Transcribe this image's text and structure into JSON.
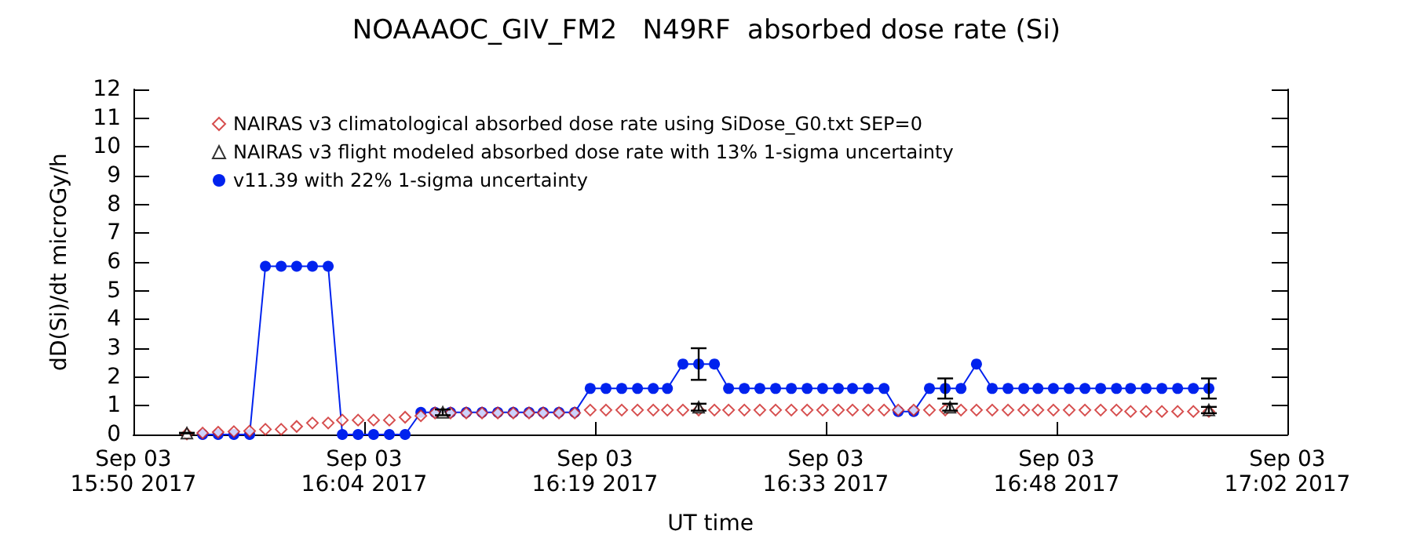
{
  "chart_data": {
    "type": "scatter",
    "title": "NOAAAOC_GIV_FM2   N49RF  absorbed dose rate (Si)",
    "xlabel": "UT time",
    "ylabel": "dD(Si)/dt microGy/h",
    "xlim": [
      "2017-09-03T15:50:00",
      "2017-09-03T17:02:00"
    ],
    "xticks": [
      {
        "value": "2017-09-03T15:50:00",
        "label": "Sep 03\n15:50 2017"
      },
      {
        "value": "2017-09-03T16:04:24",
        "label": "Sep 03\n16:04 2017"
      },
      {
        "value": "2017-09-03T16:18:48",
        "label": "Sep 03\n16:19 2017"
      },
      {
        "value": "2017-09-03T16:33:12",
        "label": "Sep 03\n16:33 2017"
      },
      {
        "value": "2017-09-03T16:47:36",
        "label": "Sep 03\n16:48 2017"
      },
      {
        "value": "2017-09-03T17:02:00",
        "label": "Sep 03\n17:02 2017"
      }
    ],
    "ylim": [
      0,
      12
    ],
    "yticks": [
      0,
      1,
      2,
      3,
      4,
      5,
      6,
      7,
      8,
      9,
      10,
      11,
      12
    ],
    "grid": false,
    "legend": "top left",
    "series": [
      {
        "name": "NAIRAS v3 climatological absorbed dose rate using SiDose_G0.txt SEP=0",
        "marker": "diamond",
        "color": "#cc2222",
        "x": [
          "2017-09-03T15:53:20",
          "2017-09-03T15:54:19",
          "2017-09-03T15:55:17",
          "2017-09-03T15:56:16",
          "2017-09-03T15:57:15",
          "2017-09-03T15:58:14",
          "2017-09-03T15:59:13",
          "2017-09-03T16:00:11",
          "2017-09-03T16:01:10",
          "2017-09-03T16:02:09",
          "2017-09-03T16:03:02",
          "2017-09-03T16:04:01",
          "2017-09-03T16:04:59",
          "2017-09-03T16:05:58",
          "2017-09-03T16:06:57",
          "2017-09-03T16:07:56",
          "2017-09-03T16:08:49",
          "2017-09-03T16:09:47",
          "2017-09-03T16:10:46",
          "2017-09-03T16:11:45",
          "2017-09-03T16:12:44",
          "2017-09-03T16:13:42",
          "2017-09-03T16:14:41",
          "2017-09-03T16:15:34",
          "2017-09-03T16:16:33",
          "2017-09-03T16:17:32",
          "2017-09-03T16:18:30",
          "2017-09-03T16:19:29",
          "2017-09-03T16:20:28",
          "2017-09-03T16:21:27",
          "2017-09-03T16:22:26",
          "2017-09-03T16:23:19",
          "2017-09-03T16:24:17",
          "2017-09-03T16:25:16",
          "2017-09-03T16:26:15",
          "2017-09-03T16:27:08",
          "2017-09-03T16:28:07",
          "2017-09-03T16:29:05",
          "2017-09-03T16:30:04",
          "2017-09-03T16:31:03",
          "2017-09-03T16:32:02",
          "2017-09-03T16:33:00",
          "2017-09-03T16:33:59",
          "2017-09-03T16:34:52",
          "2017-09-03T16:35:51",
          "2017-09-03T16:36:50",
          "2017-09-03T16:37:43",
          "2017-09-03T16:38:41",
          "2017-09-03T16:39:40",
          "2017-09-03T16:40:39",
          "2017-09-03T16:41:38",
          "2017-09-03T16:42:36",
          "2017-09-03T16:43:35",
          "2017-09-03T16:44:34",
          "2017-09-03T16:45:33",
          "2017-09-03T16:46:26",
          "2017-09-03T16:47:24",
          "2017-09-03T16:48:23",
          "2017-09-03T16:49:22",
          "2017-09-03T16:50:21",
          "2017-09-03T16:51:20",
          "2017-09-03T16:52:13",
          "2017-09-03T16:53:11",
          "2017-09-03T16:54:10",
          "2017-09-03T16:55:09",
          "2017-09-03T16:56:08",
          "2017-09-03T16:57:06"
        ],
        "values": [
          0.02,
          0.05,
          0.08,
          0.1,
          0.12,
          0.18,
          0.18,
          0.28,
          0.4,
          0.4,
          0.5,
          0.5,
          0.5,
          0.5,
          0.6,
          0.65,
          0.75,
          0.75,
          0.75,
          0.75,
          0.75,
          0.75,
          0.75,
          0.75,
          0.75,
          0.75,
          0.85,
          0.85,
          0.85,
          0.85,
          0.85,
          0.85,
          0.85,
          0.85,
          0.85,
          0.85,
          0.85,
          0.85,
          0.85,
          0.85,
          0.85,
          0.85,
          0.85,
          0.85,
          0.85,
          0.85,
          0.85,
          0.85,
          0.85,
          0.85,
          0.85,
          0.85,
          0.85,
          0.85,
          0.85,
          0.85,
          0.85,
          0.85,
          0.85,
          0.85,
          0.85,
          0.8,
          0.8,
          0.8,
          0.8,
          0.8,
          0.8
        ]
      },
      {
        "name": "NAIRAS v3 flight modeled absorbed dose rate with 13% 1-sigma uncertainty",
        "marker": "triangle",
        "color": "#000000",
        "x": [
          "2017-09-03T15:53:20",
          "2017-09-03T16:09:18",
          "2017-09-03T16:25:16",
          "2017-09-03T16:40:57",
          "2017-09-03T16:57:06"
        ],
        "values": [
          0.05,
          0.77,
          0.95,
          0.95,
          0.85
        ],
        "errors": [
          0.01,
          0.1,
          0.12,
          0.12,
          0.11
        ]
      },
      {
        "name": "v11.39 with 22% 1-sigma uncertainty",
        "type": "line",
        "marker": "circle",
        "color": "#0022ee",
        "x": [
          "2017-09-03T15:54:19",
          "2017-09-03T15:55:17",
          "2017-09-03T15:56:16",
          "2017-09-03T15:57:15",
          "2017-09-03T15:58:14",
          "2017-09-03T15:59:13",
          "2017-09-03T16:00:11",
          "2017-09-03T16:01:10",
          "2017-09-03T16:02:09",
          "2017-09-03T16:03:02",
          "2017-09-03T16:04:01",
          "2017-09-03T16:04:59",
          "2017-09-03T16:05:58",
          "2017-09-03T16:06:57",
          "2017-09-03T16:07:56",
          "2017-09-03T16:08:49",
          "2017-09-03T16:09:47",
          "2017-09-03T16:10:46",
          "2017-09-03T16:11:45",
          "2017-09-03T16:12:44",
          "2017-09-03T16:13:42",
          "2017-09-03T16:14:41",
          "2017-09-03T16:15:34",
          "2017-09-03T16:16:33",
          "2017-09-03T16:17:32",
          "2017-09-03T16:18:30",
          "2017-09-03T16:19:29",
          "2017-09-03T16:20:28",
          "2017-09-03T16:21:27",
          "2017-09-03T16:22:26",
          "2017-09-03T16:23:19",
          "2017-09-03T16:24:17",
          "2017-09-03T16:25:16",
          "2017-09-03T16:26:15",
          "2017-09-03T16:27:08",
          "2017-09-03T16:28:07",
          "2017-09-03T16:29:05",
          "2017-09-03T16:30:04",
          "2017-09-03T16:31:03",
          "2017-09-03T16:32:02",
          "2017-09-03T16:33:00",
          "2017-09-03T16:33:59",
          "2017-09-03T16:34:52",
          "2017-09-03T16:35:51",
          "2017-09-03T16:36:50",
          "2017-09-03T16:37:43",
          "2017-09-03T16:38:41",
          "2017-09-03T16:39:40",
          "2017-09-03T16:40:39",
          "2017-09-03T16:41:38",
          "2017-09-03T16:42:36",
          "2017-09-03T16:43:35",
          "2017-09-03T16:44:34",
          "2017-09-03T16:45:33",
          "2017-09-03T16:46:26",
          "2017-09-03T16:47:24",
          "2017-09-03T16:48:23",
          "2017-09-03T16:49:22",
          "2017-09-03T16:50:21",
          "2017-09-03T16:51:20",
          "2017-09-03T16:52:13",
          "2017-09-03T16:53:11",
          "2017-09-03T16:54:10",
          "2017-09-03T16:55:09",
          "2017-09-03T16:56:08",
          "2017-09-03T16:57:06"
        ],
        "values": [
          0,
          0,
          0,
          0,
          5.85,
          5.85,
          5.85,
          5.85,
          5.85,
          0,
          0,
          0,
          0,
          0,
          0.77,
          0.77,
          0.77,
          0.77,
          0.77,
          0.77,
          0.77,
          0.77,
          0.77,
          0.77,
          0.77,
          1.6,
          1.6,
          1.6,
          1.6,
          1.6,
          1.6,
          2.45,
          2.45,
          2.45,
          1.6,
          1.6,
          1.6,
          1.6,
          1.6,
          1.6,
          1.6,
          1.6,
          1.6,
          1.6,
          1.6,
          0.8,
          0.8,
          1.6,
          1.6,
          1.6,
          2.45,
          1.6,
          1.6,
          1.6,
          1.6,
          1.6,
          1.6,
          1.6,
          1.6,
          1.6,
          1.6,
          1.6,
          1.6,
          1.6,
          1.6,
          1.6
        ],
        "errors": [
          null,
          null,
          null,
          null,
          null,
          null,
          null,
          null,
          null,
          null,
          null,
          null,
          null,
          null,
          null,
          null,
          null,
          null,
          null,
          null,
          null,
          null,
          null,
          null,
          null,
          null,
          null,
          null,
          null,
          null,
          null,
          null,
          0.55,
          null,
          null,
          null,
          null,
          null,
          null,
          null,
          null,
          null,
          null,
          null,
          null,
          null,
          null,
          null,
          0.35,
          null,
          null,
          null,
          null,
          null,
          null,
          null,
          null,
          null,
          null,
          null,
          null,
          null,
          null,
          null,
          null,
          0.35
        ]
      }
    ]
  }
}
